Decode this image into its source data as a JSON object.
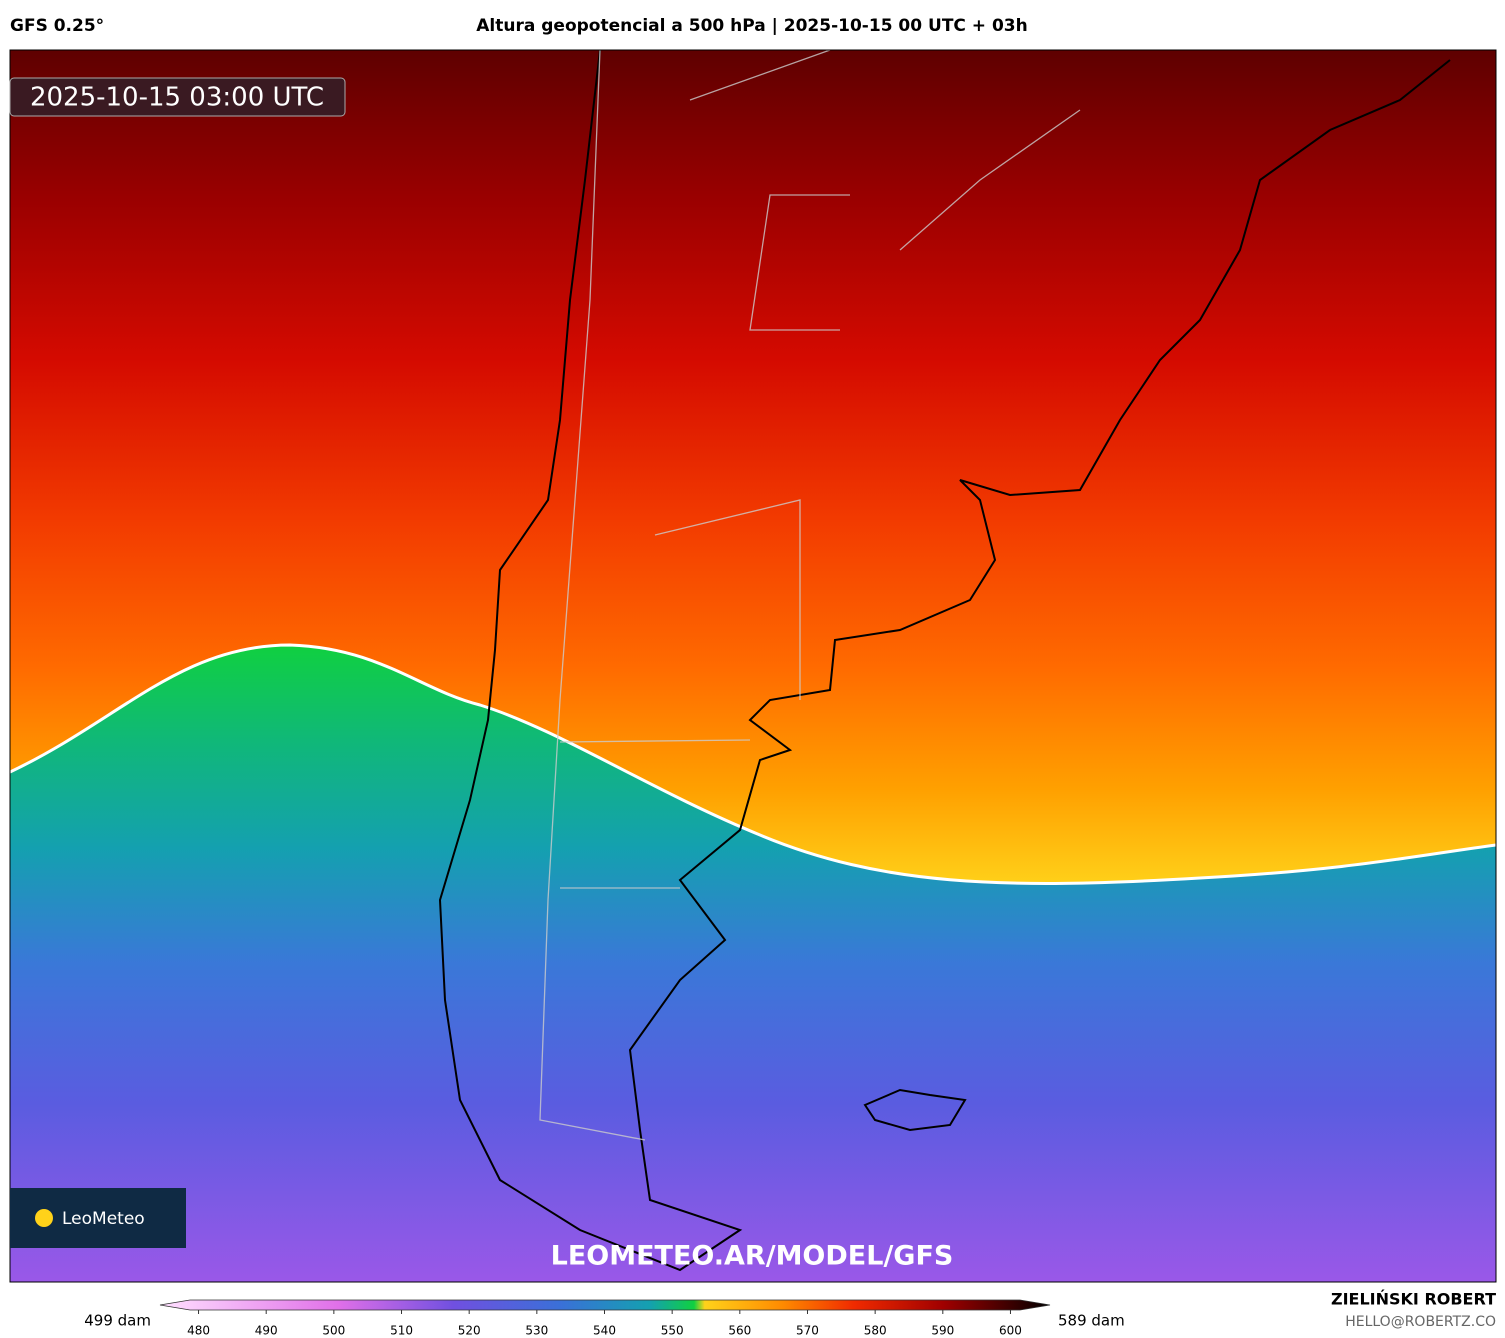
{
  "header": {
    "model": "GFS 0.25°",
    "title": "Altura geopotencial a 500 hPa | 2025-10-15 00 UTC + 03h"
  },
  "map": {
    "valid_time": "2025-10-15 03:00 UTC",
    "watermark": "LEOMETEO.AR/MODEL/GFS",
    "logo": "LeoMeteo"
  },
  "colorbar": {
    "min_label": "499 dam",
    "max_label": "589 dam",
    "range": [
      478,
      602
    ],
    "ticks": [
      480,
      490,
      500,
      510,
      520,
      530,
      540,
      550,
      560,
      570,
      580,
      590,
      600
    ]
  },
  "footer": {
    "author": "ZIELIŃSKI ROBERT",
    "email": "HELLO@ROBERTZ.CO"
  }
}
